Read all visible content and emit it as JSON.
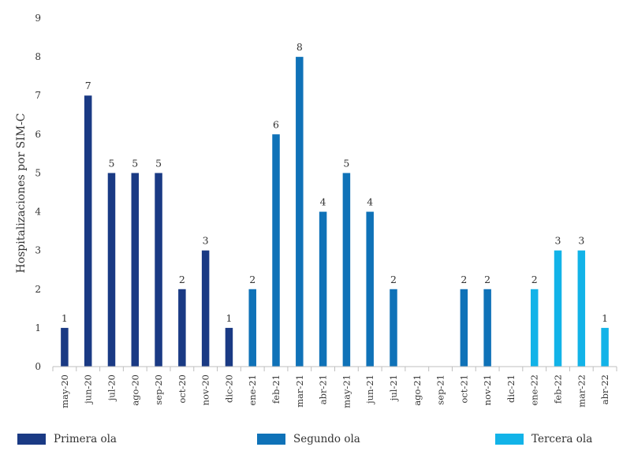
{
  "chart_data": {
    "type": "bar",
    "ylabel": "Hospitalizaciones por SIM-C",
    "xlabel": "",
    "ylim": [
      0,
      9
    ],
    "yticks": [
      0,
      1,
      2,
      3,
      4,
      5,
      6,
      7,
      8,
      9
    ],
    "grid": false,
    "legend_placement": "bottom",
    "categories": [
      "may-20",
      "jun-20",
      "jul-20",
      "ago-20",
      "sep-20",
      "oct-20",
      "nov-20",
      "dic-20",
      "ene-21",
      "feb-21",
      "mar-21",
      "abr-21",
      "may-21",
      "jun-21",
      "jul-21",
      "ago-21",
      "sep-21",
      "oct-21",
      "nov-21",
      "dic-21",
      "ene-22",
      "feb-22",
      "mar-22",
      "abr-22"
    ],
    "series": [
      {
        "name": "Primera ola",
        "color": "#1a3a84",
        "values": [
          1,
          7,
          5,
          5,
          5,
          2,
          3,
          1,
          null,
          null,
          null,
          null,
          null,
          null,
          null,
          null,
          null,
          null,
          null,
          null,
          null,
          null,
          null,
          null
        ]
      },
      {
        "name": "Segundo ola",
        "color": "#0f72b8",
        "values": [
          null,
          null,
          null,
          null,
          null,
          null,
          null,
          null,
          2,
          6,
          8,
          4,
          5,
          4,
          2,
          0,
          0,
          2,
          2,
          0,
          null,
          null,
          null,
          null
        ]
      },
      {
        "name": "Tercera ola",
        "color": "#12b3e8",
        "values": [
          null,
          null,
          null,
          null,
          null,
          null,
          null,
          null,
          null,
          null,
          null,
          null,
          null,
          null,
          null,
          null,
          null,
          null,
          null,
          null,
          2,
          3,
          3,
          1
        ]
      }
    ]
  }
}
